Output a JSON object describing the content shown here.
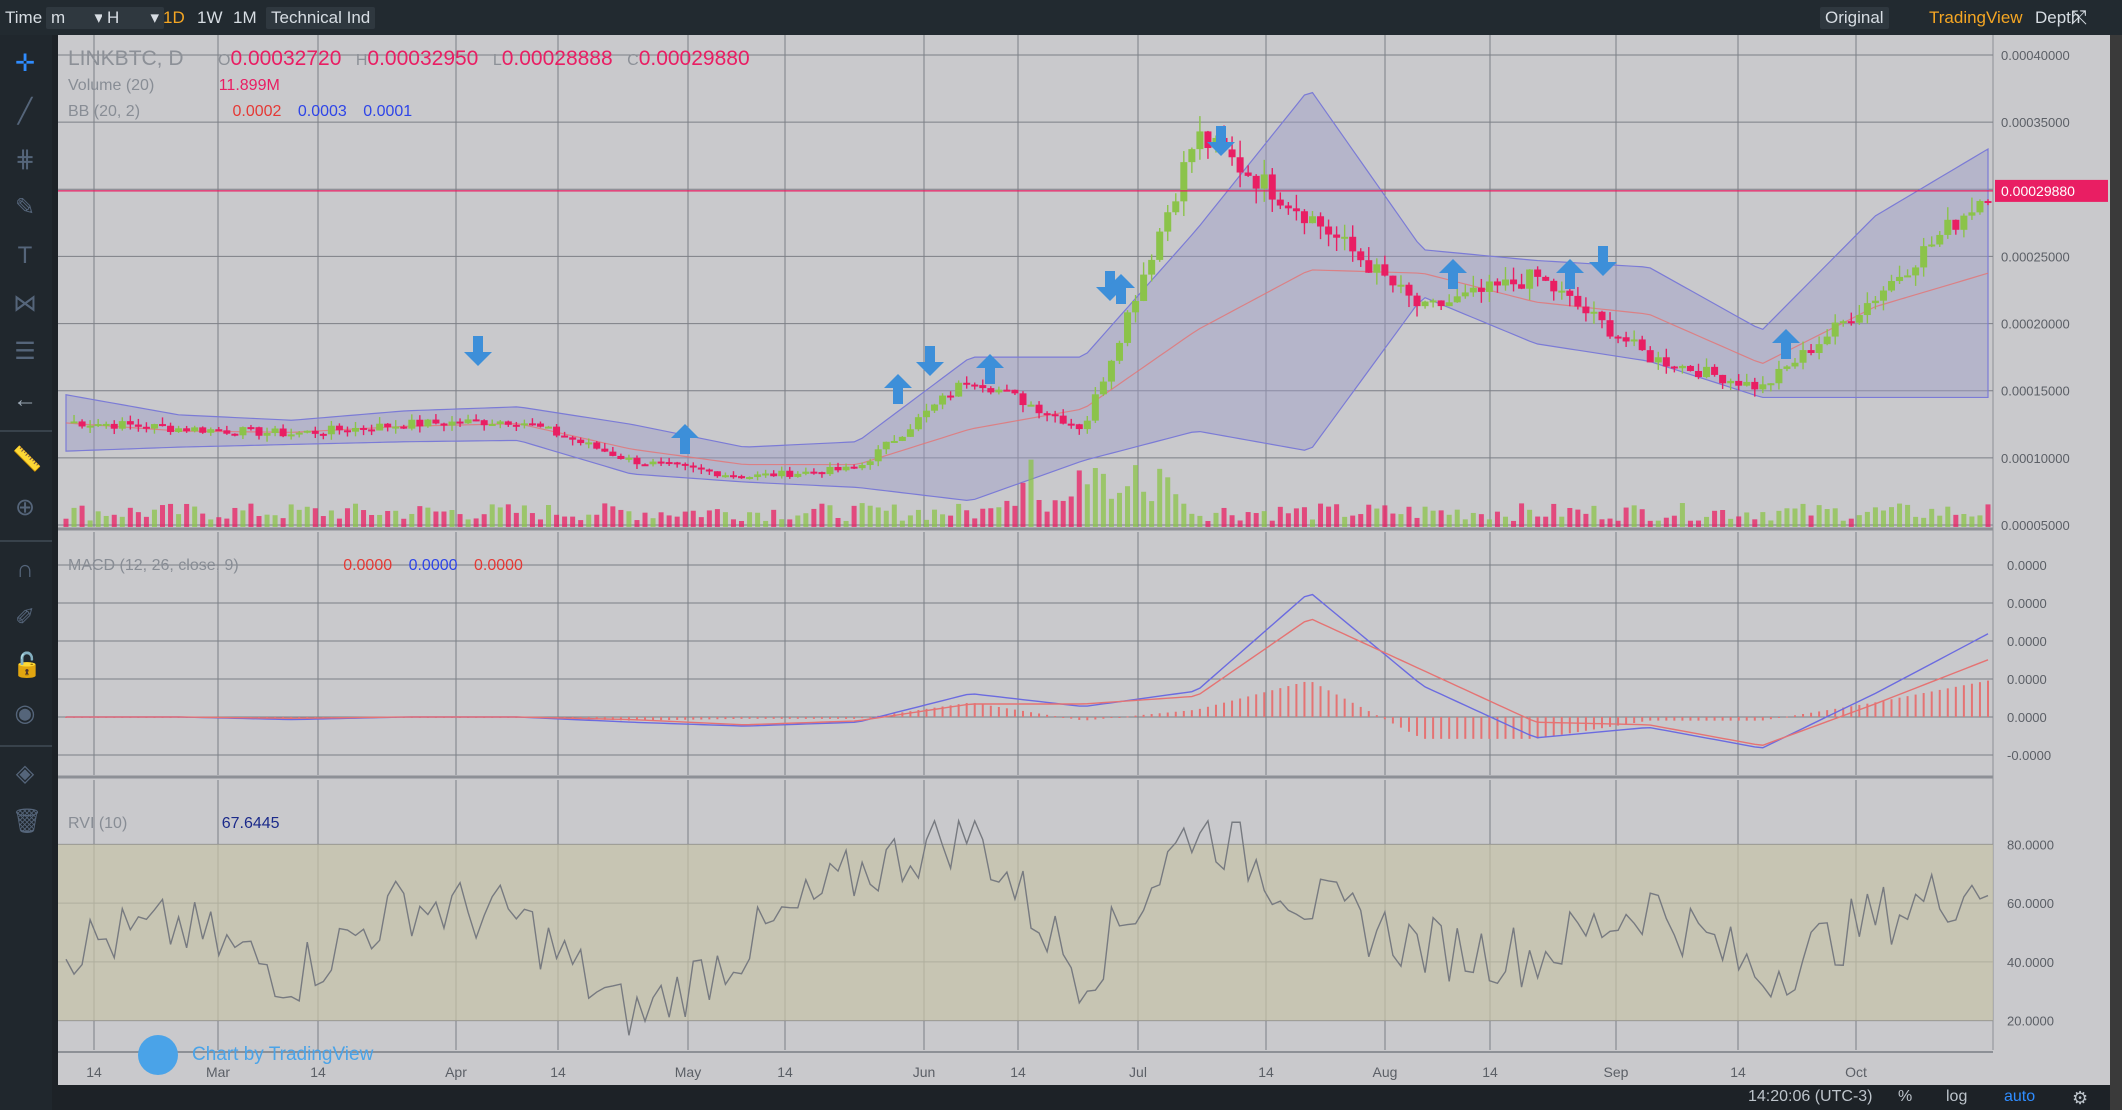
{
  "toolbar": {
    "time_label": "Time",
    "minute_label": "m",
    "hour_label": "H",
    "d1_label": "1D",
    "w1_label": "1W",
    "m1_label": "1M",
    "tech_label": "Technical Ind",
    "original_label": "Original",
    "tradingview_label": "TradingView",
    "depth_label": "Depth"
  },
  "legend": {
    "symbol": "LINKBTC, D",
    "ohlc_o_label": "O",
    "ohlc_o": "0.00032720",
    "ohlc_h_label": "H",
    "ohlc_h": "0.00032950",
    "ohlc_l_label": "L",
    "ohlc_l": "0.00028888",
    "ohlc_c_label": "C",
    "ohlc_c": "0.00029880",
    "volume_label": "Volume (20)",
    "volume_value": "11.899M",
    "bb_label": "BB (20, 2)",
    "bb_v1": "0.0002",
    "bb_v2": "0.0003",
    "bb_v3": "0.0001",
    "macd_label": "MACD (12, 26, close, 9)",
    "macd_v1": "0.0000",
    "macd_v2": "0.0000",
    "macd_v3": "0.0000",
    "rvi_label": "RVI (10)",
    "rvi_value": "67.6445"
  },
  "bottom": {
    "time": "14:20:06 (UTC-3)",
    "percent_label": "%",
    "log_label": "log",
    "auto_label": "auto"
  },
  "watermark": {
    "text": "Chart by TradingView"
  },
  "colors": {
    "up": "#8bc34a",
    "down": "#e91e63",
    "bb_fill": "#9e9ec8",
    "rvi_fill": "#c6c3a8",
    "accent": "#f5a623",
    "arrow": "#3d8fd9"
  },
  "icons": [
    "crosshair-icon",
    "trend-line-icon",
    "fib-icon",
    "brush-icon",
    "text-icon",
    "pattern-icon",
    "measure-lines-icon",
    "back-arrow-icon",
    "ruler-icon",
    "zoom-icon",
    "magnet-icon",
    "lock-draw-icon",
    "lock-icon",
    "eye-icon",
    "layers-icon",
    "trash-icon",
    "fullscreen-icon",
    "settings-icon"
  ],
  "chart_data": [
    {
      "type": "line",
      "description_of": "LINKBTC daily candlesticks with Bollinger Bands (20,2)",
      "x_tick_labels": [
        "14",
        "Mar",
        "14",
        "Apr",
        "14",
        "May",
        "14",
        "Jun",
        "14",
        "Jul",
        "14",
        "Aug",
        "14",
        "Sep",
        "14",
        "Oct"
      ],
      "y_tick_labels": [
        "0.00040000",
        "0.00035000",
        "0.00030000",
        "0.00025000",
        "0.00020000",
        "0.00015000",
        "0.00010000",
        "0.00005000"
      ],
      "ylim": [
        5e-05,
        0.0004
      ],
      "current_price": 0.0002988,
      "current_price_label": "0.00029880",
      "series": [
        {
          "name": "close",
          "x": [
            "Feb 5",
            "Feb 14",
            "Mar 1",
            "Mar 14",
            "Apr 1",
            "Apr 14",
            "May 1",
            "May 14",
            "Jun 1",
            "Jun 14",
            "Jul 1",
            "Jul 14",
            "Aug 1",
            "Aug 14",
            "Sep 1",
            "Sep 14",
            "Oct 1",
            "Oct 10"
          ],
          "values": [
            0.000127,
            0.000122,
            0.000118,
            0.000125,
            0.000128,
            9.8e-05,
            8.6e-05,
            9.2e-05,
            0.00016,
            0.000122,
            0.00034,
            0.00028,
            0.00021,
            0.000235,
            0.000175,
            0.000152,
            0.00022,
            0.0002988
          ]
        },
        {
          "name": "bb_upper",
          "values": [
            0.000147,
            0.000132,
            0.000128,
            0.000135,
            0.000138,
            0.000125,
            0.000108,
            0.000112,
            0.000175,
            0.000175,
            0.00027,
            0.000375,
            0.000255,
            0.000247,
            0.000242,
            0.000195,
            0.00028,
            0.00033
          ]
        },
        {
          "name": "bb_lower",
          "values": [
            0.000105,
            0.000108,
            0.00011,
            0.000112,
            0.000113,
            8.8e-05,
            8.2e-05,
            7.8e-05,
            6.8e-05,
            9.8e-05,
            0.00012,
            0.000105,
            0.00022,
            0.000185,
            0.000172,
            0.000145,
            0.000145,
            0.000145
          ]
        }
      ]
    },
    {
      "type": "line",
      "description_of": "MACD (12, 26, close, 9)",
      "y_tick_labels": [
        "0.0000",
        "0.0000",
        "0.0000",
        "0.0000",
        "0.0000",
        "-0.0000"
      ],
      "series": [
        {
          "name": "macd",
          "values": [
            0,
            0,
            -0.1,
            0,
            0,
            -0.2,
            -0.35,
            -0.2,
            0.9,
            0.4,
            1.0,
            4.8,
            1.2,
            -0.8,
            -0.4,
            -1.2,
            0.9,
            3.2
          ]
        },
        {
          "name": "signal",
          "values": [
            0,
            0,
            -0.05,
            0,
            0,
            -0.1,
            -0.3,
            -0.15,
            0.5,
            0.5,
            0.8,
            3.8,
            1.8,
            -0.2,
            -0.3,
            -1.1,
            0.5,
            2.2
          ]
        }
      ]
    },
    {
      "type": "line",
      "description_of": "RVI (10)",
      "y_tick_labels": [
        "80.0000",
        "60.0000",
        "40.0000",
        "20.0000"
      ],
      "ylim": [
        10,
        90
      ],
      "series": [
        {
          "name": "rvi",
          "values": [
            45,
            52,
            35,
            60,
            55,
            20,
            45,
            70,
            85,
            35,
            88,
            60,
            45,
            42,
            60,
            35,
            55,
            67.6
          ]
        }
      ]
    }
  ]
}
